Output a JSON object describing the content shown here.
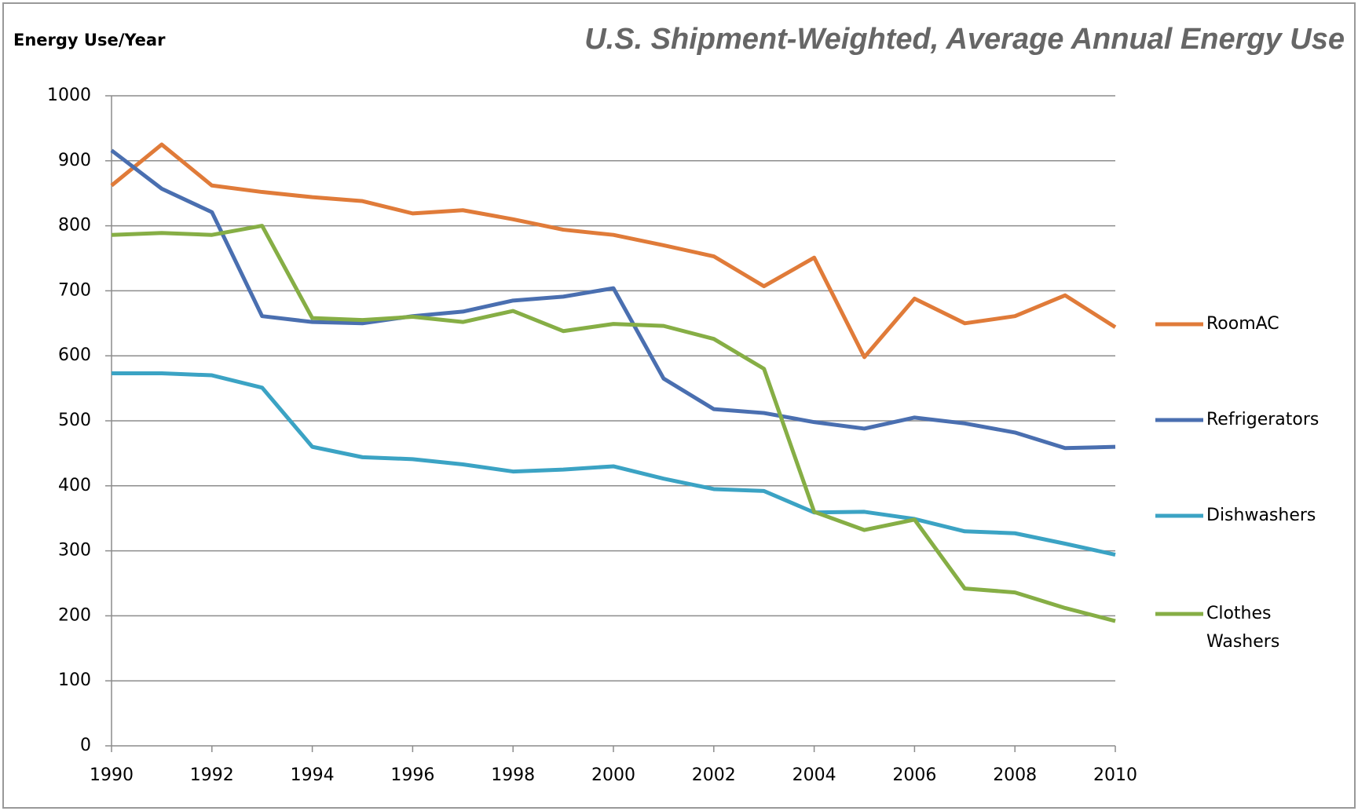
{
  "chart_data": {
    "type": "line",
    "title": "U.S. Shipment-Weighted, Average Annual Energy Use",
    "y_label": "Energy Use/Year",
    "x": [
      1990,
      1991,
      1992,
      1993,
      1994,
      1995,
      1996,
      1997,
      1998,
      1999,
      2000,
      2001,
      2002,
      2003,
      2004,
      2005,
      2006,
      2007,
      2008,
      2009,
      2010
    ],
    "series": [
      {
        "name": "RoomAC",
        "color": "#e07b39",
        "values": [
          862,
          925,
          862,
          852,
          844,
          838,
          819,
          824,
          810,
          794,
          786,
          770,
          753,
          707,
          751,
          598,
          688,
          650,
          661,
          693,
          644
        ]
      },
      {
        "name": "Refrigerators",
        "color": "#4a6fb0",
        "values": [
          916,
          857,
          821,
          661,
          652,
          650,
          661,
          668,
          685,
          691,
          704,
          565,
          518,
          512,
          498,
          488,
          505,
          496,
          482,
          458,
          460
        ]
      },
      {
        "name": "Dishwashers",
        "color": "#3ba3c4",
        "values": [
          573,
          573,
          570,
          551,
          460,
          444,
          441,
          433,
          422,
          425,
          430,
          411,
          395,
          392,
          359,
          360,
          349,
          330,
          327,
          311,
          294
        ]
      },
      {
        "name": "Clothes Washers",
        "color": "#86ae45",
        "values": [
          786,
          789,
          786,
          800,
          658,
          655,
          660,
          652,
          669,
          638,
          649,
          646,
          626,
          580,
          360,
          332,
          348,
          242,
          236,
          212,
          192
        ]
      }
    ],
    "xlim": [
      1990,
      2010
    ],
    "xticks": [
      1990,
      1992,
      1994,
      1996,
      1998,
      2000,
      2002,
      2004,
      2006,
      2008,
      2010
    ],
    "ylim": [
      0,
      1000
    ],
    "yticks": [
      0,
      100,
      200,
      300,
      400,
      500,
      600,
      700,
      800,
      900,
      1000
    ],
    "grid": true,
    "legend": "right"
  }
}
